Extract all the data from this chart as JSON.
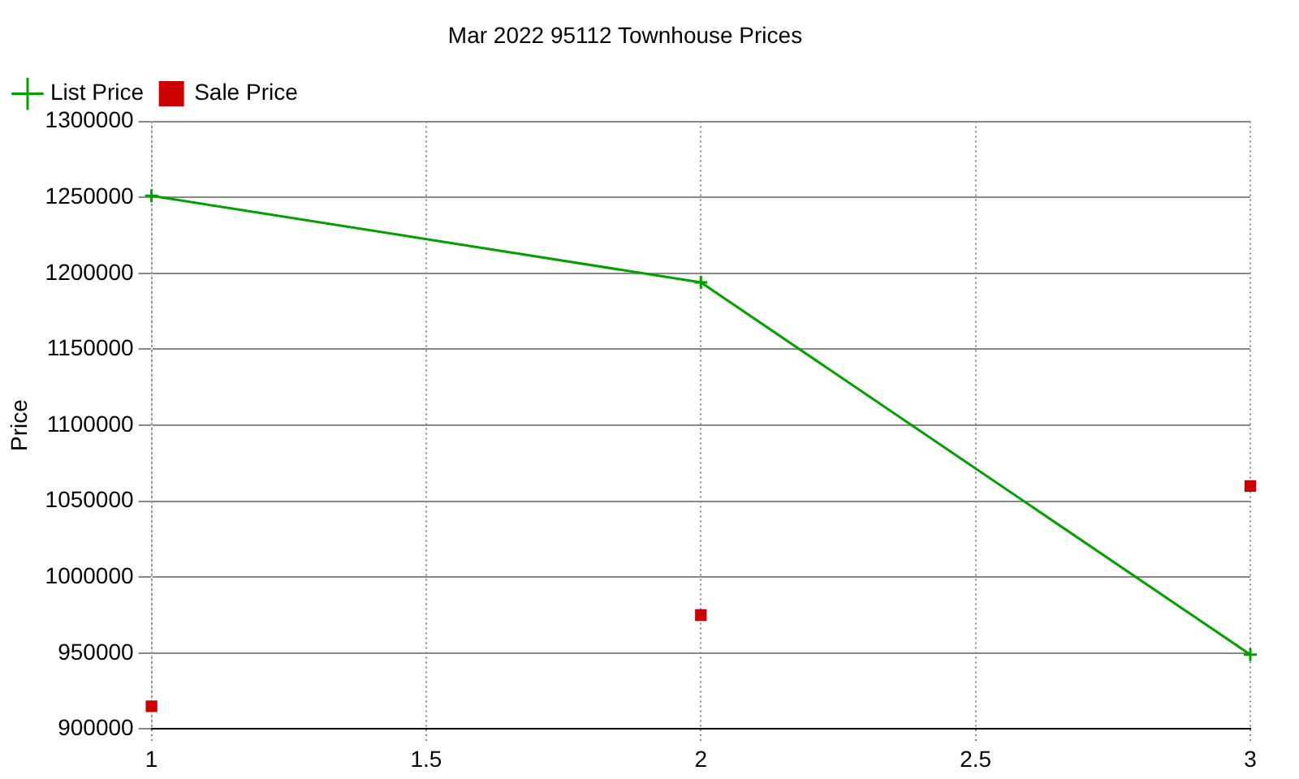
{
  "chart_data": {
    "type": "line",
    "title": "Mar 2022 95112 Townhouse Prices",
    "ylabel": "Price",
    "x": [
      1,
      2,
      3
    ],
    "series": [
      {
        "name": "List Price",
        "color": "#00a000",
        "marker": "cross",
        "values": [
          1251000,
          1194000,
          949000
        ]
      },
      {
        "name": "Sale Price",
        "type": "scatter",
        "color": "#cc0000",
        "marker": "square",
        "values": [
          915000,
          975000,
          1060000
        ]
      }
    ],
    "xlim": [
      1,
      3
    ],
    "xticks": [
      1,
      1.5,
      2,
      2.5,
      3
    ],
    "ylim": [
      900000,
      1300000
    ],
    "yticks": [
      900000,
      950000,
      1000000,
      1050000,
      1100000,
      1150000,
      1200000,
      1250000,
      1300000
    ],
    "grid": true,
    "legend": "top left"
  }
}
